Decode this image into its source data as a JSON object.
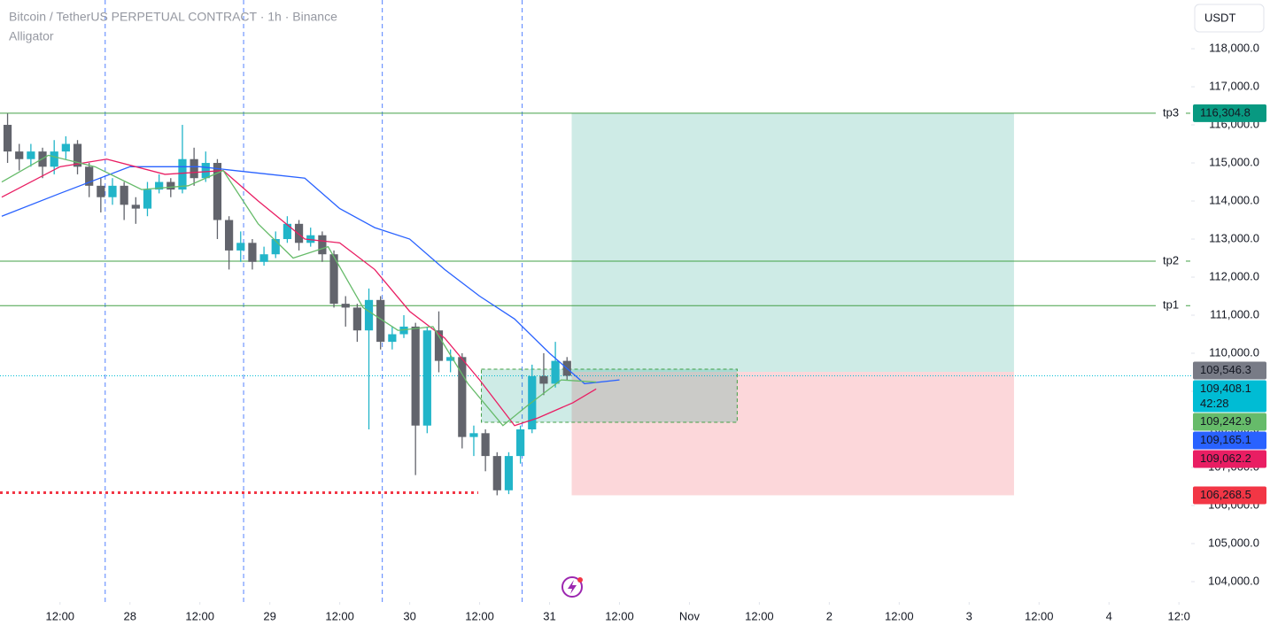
{
  "chart_data": {
    "type": "candlestick",
    "title": "Bitcoin / TetherUS PERPETUAL CONTRACT · 1h · Binance",
    "subtitle": "Alligator",
    "currency": "USDT",
    "x": [
      3,
      5,
      7,
      9,
      11,
      13,
      15,
      17,
      19,
      21,
      23,
      25,
      27,
      29,
      31,
      33,
      35,
      37,
      39,
      41,
      43,
      45,
      47,
      49,
      51,
      53,
      55,
      57,
      59,
      61,
      63,
      65,
      67,
      69,
      71,
      73,
      75,
      77,
      79,
      81,
      83,
      85,
      87,
      89,
      91,
      93,
      95,
      97,
      99
    ],
    "open": [
      116000,
      115300,
      115100,
      115300,
      114900,
      115300,
      115500,
      114900,
      114400,
      114100,
      114400,
      113900,
      113800,
      114300,
      114500,
      114300,
      115100,
      114600,
      115000,
      113500,
      112700,
      112900,
      112400,
      112600,
      113000,
      113400,
      112900,
      113100,
      112600,
      111300,
      111200,
      110600,
      111400,
      110300,
      110500,
      110700,
      108100,
      110600,
      109800,
      109900,
      107800,
      107900,
      107300,
      106400,
      107300,
      108000,
      109400,
      109200,
      109800
    ],
    "high": [
      116300,
      115500,
      115500,
      115400,
      115600,
      115700,
      115600,
      115000,
      114600,
      114600,
      114500,
      114100,
      114500,
      114700,
      114600,
      116000,
      115400,
      115300,
      115100,
      113600,
      113200,
      113000,
      112800,
      113200,
      113600,
      113500,
      113300,
      113200,
      112700,
      111500,
      111300,
      111700,
      111500,
      110700,
      111000,
      110800,
      110700,
      111100,
      110100,
      110000,
      108100,
      108000,
      107400,
      107400,
      108100,
      109700,
      110000,
      110300,
      109900
    ],
    "low": [
      115000,
      114800,
      114900,
      114600,
      114700,
      115100,
      114700,
      114100,
      113700,
      113900,
      113500,
      113400,
      113600,
      114200,
      114100,
      114200,
      114400,
      114500,
      113000,
      112200,
      112400,
      112200,
      112300,
      112500,
      112900,
      112700,
      112800,
      112400,
      111200,
      110700,
      110300,
      108000,
      110100,
      110100,
      110400,
      106800,
      107900,
      109500,
      109500,
      107500,
      107300,
      106900,
      106268.5,
      106300,
      107100,
      107900,
      108900,
      109100,
      109300
    ],
    "close": [
      115300,
      115100,
      115300,
      114900,
      115300,
      115500,
      114900,
      114400,
      114100,
      114400,
      113900,
      113800,
      114300,
      114500,
      114300,
      115100,
      114600,
      115000,
      113500,
      112700,
      112900,
      112400,
      112600,
      113000,
      113400,
      112900,
      113100,
      112600,
      111300,
      111200,
      110600,
      111400,
      110300,
      110500,
      110700,
      108100,
      110600,
      109800,
      109900,
      107800,
      107900,
      107300,
      106400,
      107300,
      108000,
      109400,
      109200,
      109800,
      109408.1
    ],
    "up_color": "#22b5c9",
    "down_color": "#62646c",
    "series": [
      {
        "color": "#2962ff",
        "x": [
          2,
          12,
          24,
          36,
          48,
          54,
          60,
          66,
          72,
          78,
          84,
          90,
          96,
          102,
          108
        ],
        "values": [
          113600,
          114200,
          114900,
          114900,
          114700,
          114600,
          113800,
          113300,
          113000,
          112200,
          111500,
          110900,
          110000,
          109200,
          109300
        ]
      },
      {
        "color": "#e91e63",
        "x": [
          2,
          12,
          20,
          30,
          40,
          46,
          54,
          60,
          66,
          72,
          78,
          84,
          90,
          94,
          100,
          104
        ],
        "values": [
          114100,
          114900,
          115100,
          114700,
          114800,
          114000,
          113000,
          112900,
          112200,
          111100,
          110400,
          109300,
          108100,
          108300,
          108700,
          109062.2
        ]
      },
      {
        "color": "#66bb6a",
        "x": [
          2,
          10,
          18,
          26,
          34,
          40,
          46,
          52,
          58,
          64,
          70,
          76,
          82,
          88,
          92,
          98,
          104
        ],
        "values": [
          114500,
          115200,
          114900,
          114300,
          114400,
          114800,
          113400,
          112500,
          112800,
          111200,
          110600,
          110700,
          109200,
          108100,
          108600,
          109300,
          109242.9
        ]
      }
    ],
    "levels": [
      {
        "label": "tp3",
        "value": 116304.8
      },
      {
        "label": "tp2",
        "value": 112420
      },
      {
        "label": "tp1",
        "value": 111250
      }
    ],
    "level_color": "#43a047",
    "position": {
      "x_start": 99.8,
      "x_end": 175.7,
      "entry": 109512,
      "target": 116304.8,
      "stop": 106268.5
    },
    "range_box": {
      "x_start": 84.3,
      "x_end": 128.2,
      "low": 108186,
      "high": 109581
    },
    "session_breaks": [
      19.75,
      43.5,
      67.3,
      91.3
    ],
    "price_labels": [
      {
        "value": 116304.8,
        "label": "116,304.8",
        "color": "#089981"
      },
      {
        "value": 109546.3,
        "label": "109,546.3",
        "color": "#787b86"
      },
      {
        "value": 109408.1,
        "label": "109,408.1",
        "color": "#00bcd4",
        "countdown": "42:28"
      },
      {
        "value": 109242.9,
        "label": "109,242.9",
        "color": "#66bb6a"
      },
      {
        "value": 109165.1,
        "label": "109,165.1",
        "color": "#2962ff"
      },
      {
        "value": 109062.2,
        "label": "109,062.2",
        "color": "#e91e63"
      },
      {
        "value": 106268.5,
        "label": "106,268.5",
        "color": "#f23645"
      }
    ],
    "xlim": [
      1.7,
      206.1
    ],
    "ylim": [
      103465,
      119280
    ],
    "xticks": [
      {
        "value": 12,
        "label": "12:00"
      },
      {
        "value": 24,
        "label": "28"
      },
      {
        "value": 36,
        "label": "12:00"
      },
      {
        "value": 48,
        "label": "29"
      },
      {
        "value": 60,
        "label": "12:00"
      },
      {
        "value": 72,
        "label": "30"
      },
      {
        "value": 84,
        "label": "12:00"
      },
      {
        "value": 96,
        "label": "31"
      },
      {
        "value": 108,
        "label": "12:00"
      },
      {
        "value": 120,
        "label": "Nov"
      },
      {
        "value": 132,
        "label": "12:00"
      },
      {
        "value": 144,
        "label": "2"
      },
      {
        "value": 156,
        "label": "12:00"
      },
      {
        "value": 168,
        "label": "3"
      },
      {
        "value": 180,
        "label": "12:00"
      },
      {
        "value": 192,
        "label": "4"
      },
      {
        "value": 204,
        "label": "12:0"
      }
    ],
    "yticks": [
      {
        "value": 118000,
        "label": "118,000.0"
      },
      {
        "value": 117000,
        "label": "117,000.0"
      },
      {
        "value": 116000,
        "label": "116,000.0"
      },
      {
        "value": 115000,
        "label": "115,000.0"
      },
      {
        "value": 114000,
        "label": "114,000.0"
      },
      {
        "value": 113000,
        "label": "113,000.0"
      },
      {
        "value": 112000,
        "label": "112,000.0"
      },
      {
        "value": 111000,
        "label": "111,000.0"
      },
      {
        "value": 110000,
        "label": "110,000.0"
      },
      {
        "value": 109000,
        "label": "109,000.0"
      },
      {
        "value": 108000,
        "label": "108,000.0"
      },
      {
        "value": 107000,
        "label": "107,000.0"
      },
      {
        "value": 106000,
        "label": "106,000.0"
      },
      {
        "value": 105000,
        "label": "105,000.0"
      },
      {
        "value": 104000,
        "label": "104,000.0"
      }
    ]
  }
}
